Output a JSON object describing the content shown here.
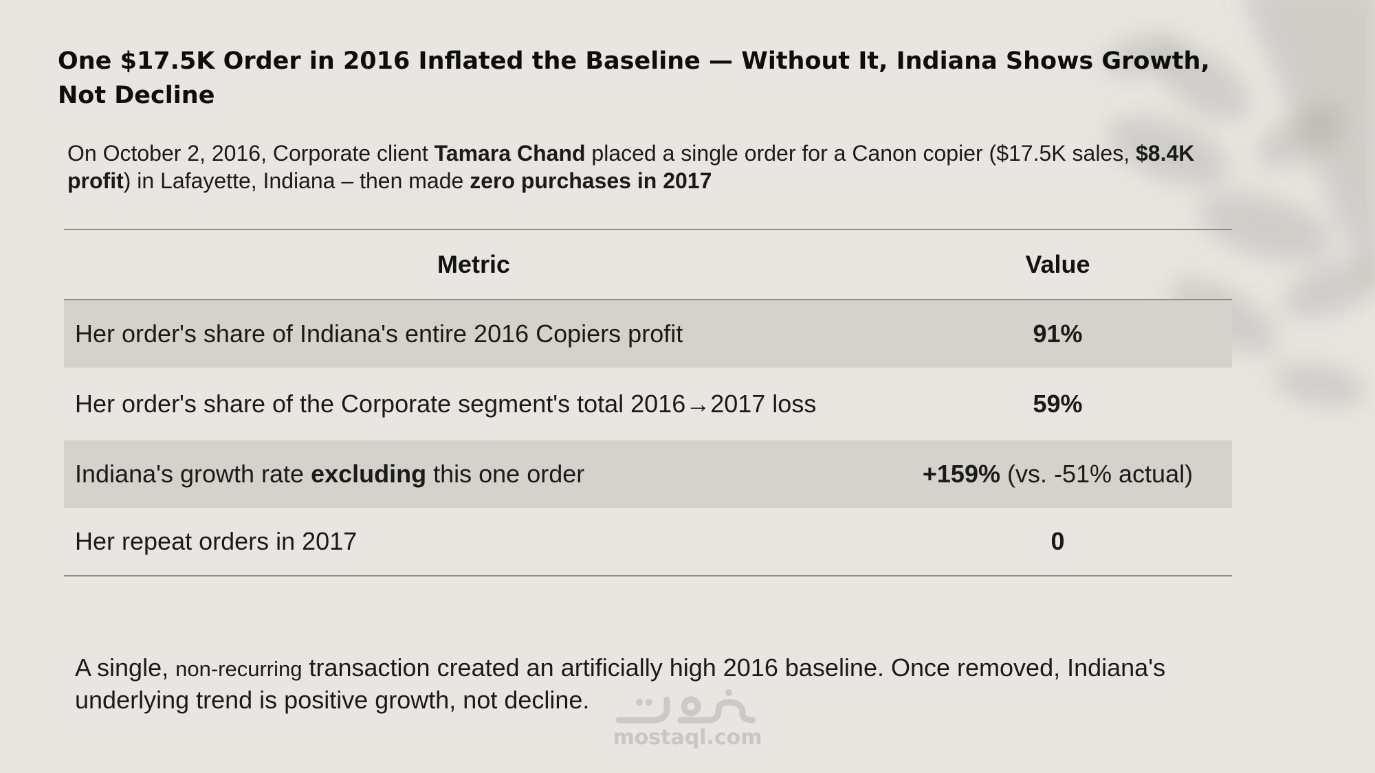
{
  "title": "One $17.5K Order in 2016 Inflated the Baseline — Without It, Indiana Shows Growth, Not Decline",
  "subtitle": {
    "part1": "On October 2, 2016, Corporate client ",
    "client_name": "Tamara Chand",
    "part2": " placed a single order for a Canon copier ($17.5K sales, ",
    "profit": "$8.4K profit",
    "part3": ") in Lafayette, Indiana – then made ",
    "zero_purchases": "zero purchases in 2017"
  },
  "table": {
    "headers": {
      "metric": "Metric",
      "value": "Value"
    },
    "rows": [
      {
        "metric": "Her order's share of Indiana's entire 2016 Copiers profit",
        "value": "91%"
      },
      {
        "metric": "Her order's share of the Corporate segment's total 2016→2017 loss",
        "value": "59%"
      },
      {
        "metric_pre": "Indiana's growth rate ",
        "metric_bold": "excluding",
        "metric_post": " this one order",
        "value_bold": "+159%",
        "value_rest": " (vs. -51% actual)"
      },
      {
        "metric": "Her repeat orders in 2017",
        "value": "0"
      }
    ]
  },
  "conclusion": {
    "part1": "A single, ",
    "small": "non-recurring",
    "part2": " transaction created an artificially high 2016 baseline. Once removed, Indiana's underlying trend is positive growth, not decline."
  },
  "watermark": {
    "text": "mostaql.com"
  },
  "colors": {
    "background": "#e9e6e1",
    "shaded_row": "#d4d2cb",
    "rule": "#8a8e7f",
    "text": "#141414"
  },
  "icons": {
    "leaf_shadow": "leaf-shadow-icon",
    "watermark_logo": "mostaql-logo-icon"
  }
}
